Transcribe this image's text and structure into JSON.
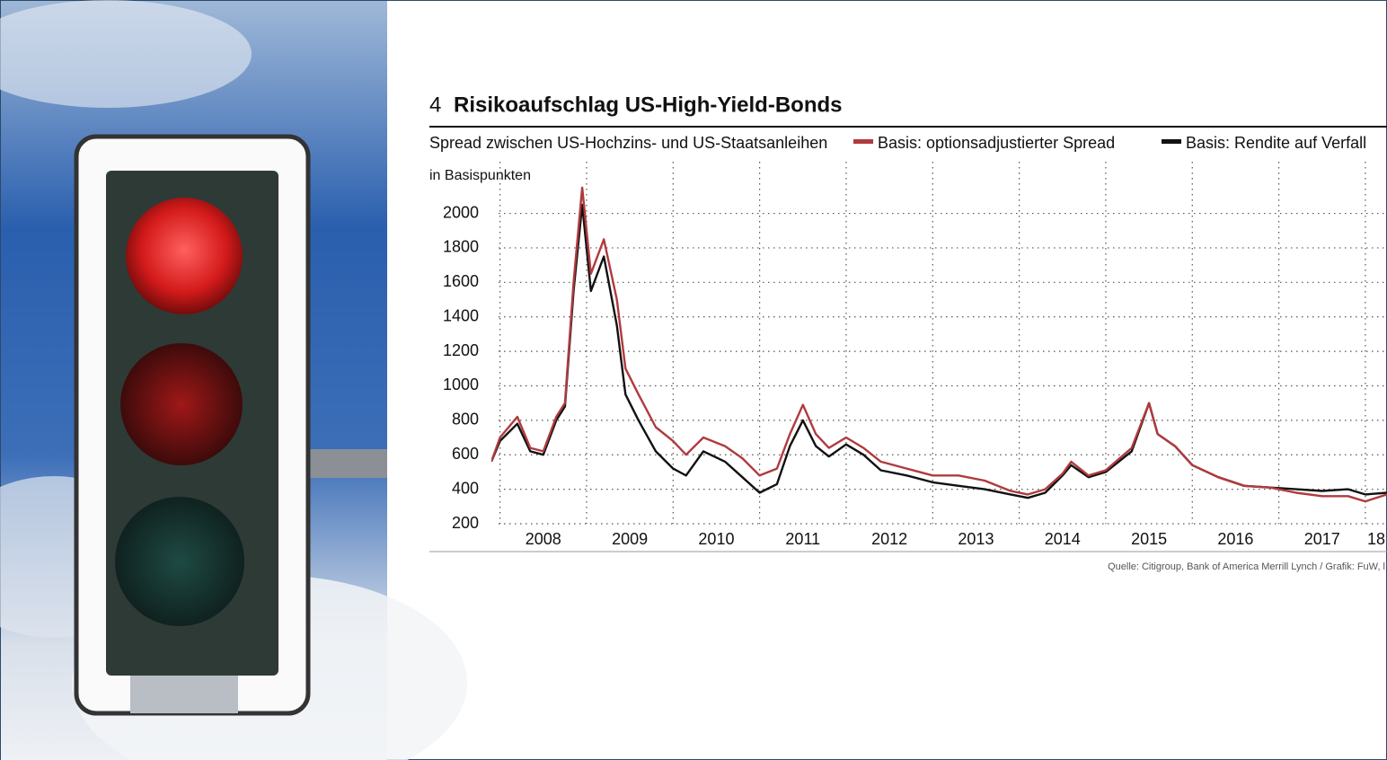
{
  "chart_data": {
    "type": "line",
    "number": "4",
    "title": "Risikoaufschlag US-High-Yield-Bonds",
    "subtitle": "Spread zwischen US-Hochzins- und US-Staatsanleihen",
    "y_label": "in Basispunkten",
    "source": "Quelle: Citigroup, Bank of America Merrill Lynch / Grafik: FuW, l",
    "x": [
      2007.9,
      2008.0,
      2008.2,
      2008.35,
      2008.5,
      2008.65,
      2008.75,
      2008.85,
      2008.95,
      2009.05,
      2009.2,
      2009.35,
      2009.45,
      2009.6,
      2009.8,
      2010.0,
      2010.15,
      2010.35,
      2010.6,
      2010.8,
      2011.0,
      2011.2,
      2011.35,
      2011.5,
      2011.65,
      2011.8,
      2012.0,
      2012.2,
      2012.4,
      2012.7,
      2013.0,
      2013.3,
      2013.6,
      2013.9,
      2014.1,
      2014.3,
      2014.5,
      2014.6,
      2014.8,
      2015.0,
      2015.3,
      2015.5,
      2015.6,
      2015.8,
      2016.0,
      2016.3,
      2016.6,
      2016.9,
      2017.2,
      2017.5,
      2017.8,
      2018.0,
      2018.25
    ],
    "series": [
      {
        "name": "Basis: optionsadjustierter Spread",
        "color": "#b03a3e",
        "values": [
          560,
          700,
          820,
          640,
          620,
          820,
          900,
          1600,
          2150,
          1650,
          1850,
          1500,
          1100,
          950,
          760,
          680,
          600,
          700,
          650,
          580,
          480,
          520,
          720,
          890,
          720,
          640,
          700,
          640,
          560,
          520,
          480,
          480,
          450,
          390,
          370,
          400,
          490,
          560,
          480,
          510,
          640,
          900,
          720,
          650,
          540,
          470,
          420,
          410,
          380,
          360,
          360,
          330,
          370
        ]
      },
      {
        "name": "Basis: Rendite auf Verfall",
        "color": "#111111",
        "values": [
          560,
          680,
          780,
          620,
          600,
          800,
          880,
          1550,
          2050,
          1550,
          1750,
          1350,
          950,
          800,
          620,
          520,
          480,
          620,
          560,
          470,
          380,
          430,
          650,
          800,
          650,
          590,
          660,
          600,
          510,
          480,
          440,
          420,
          400,
          370,
          350,
          380,
          480,
          540,
          470,
          500,
          620,
          900,
          720,
          650,
          540,
          470,
          420,
          410,
          400,
          390,
          400,
          370,
          380
        ]
      }
    ],
    "xlim": [
      2007.9,
      2018.25
    ],
    "xticks": [
      2008,
      2009,
      2010,
      2011,
      2012,
      2013,
      2014,
      2015,
      2016,
      2017,
      {
        "value": 2018,
        "label": "18"
      }
    ],
    "ylim": [
      200,
      2300
    ],
    "yticks": [
      200,
      400,
      600,
      800,
      1000,
      1200,
      1400,
      1600,
      1800,
      2000
    ],
    "grid": true
  }
}
